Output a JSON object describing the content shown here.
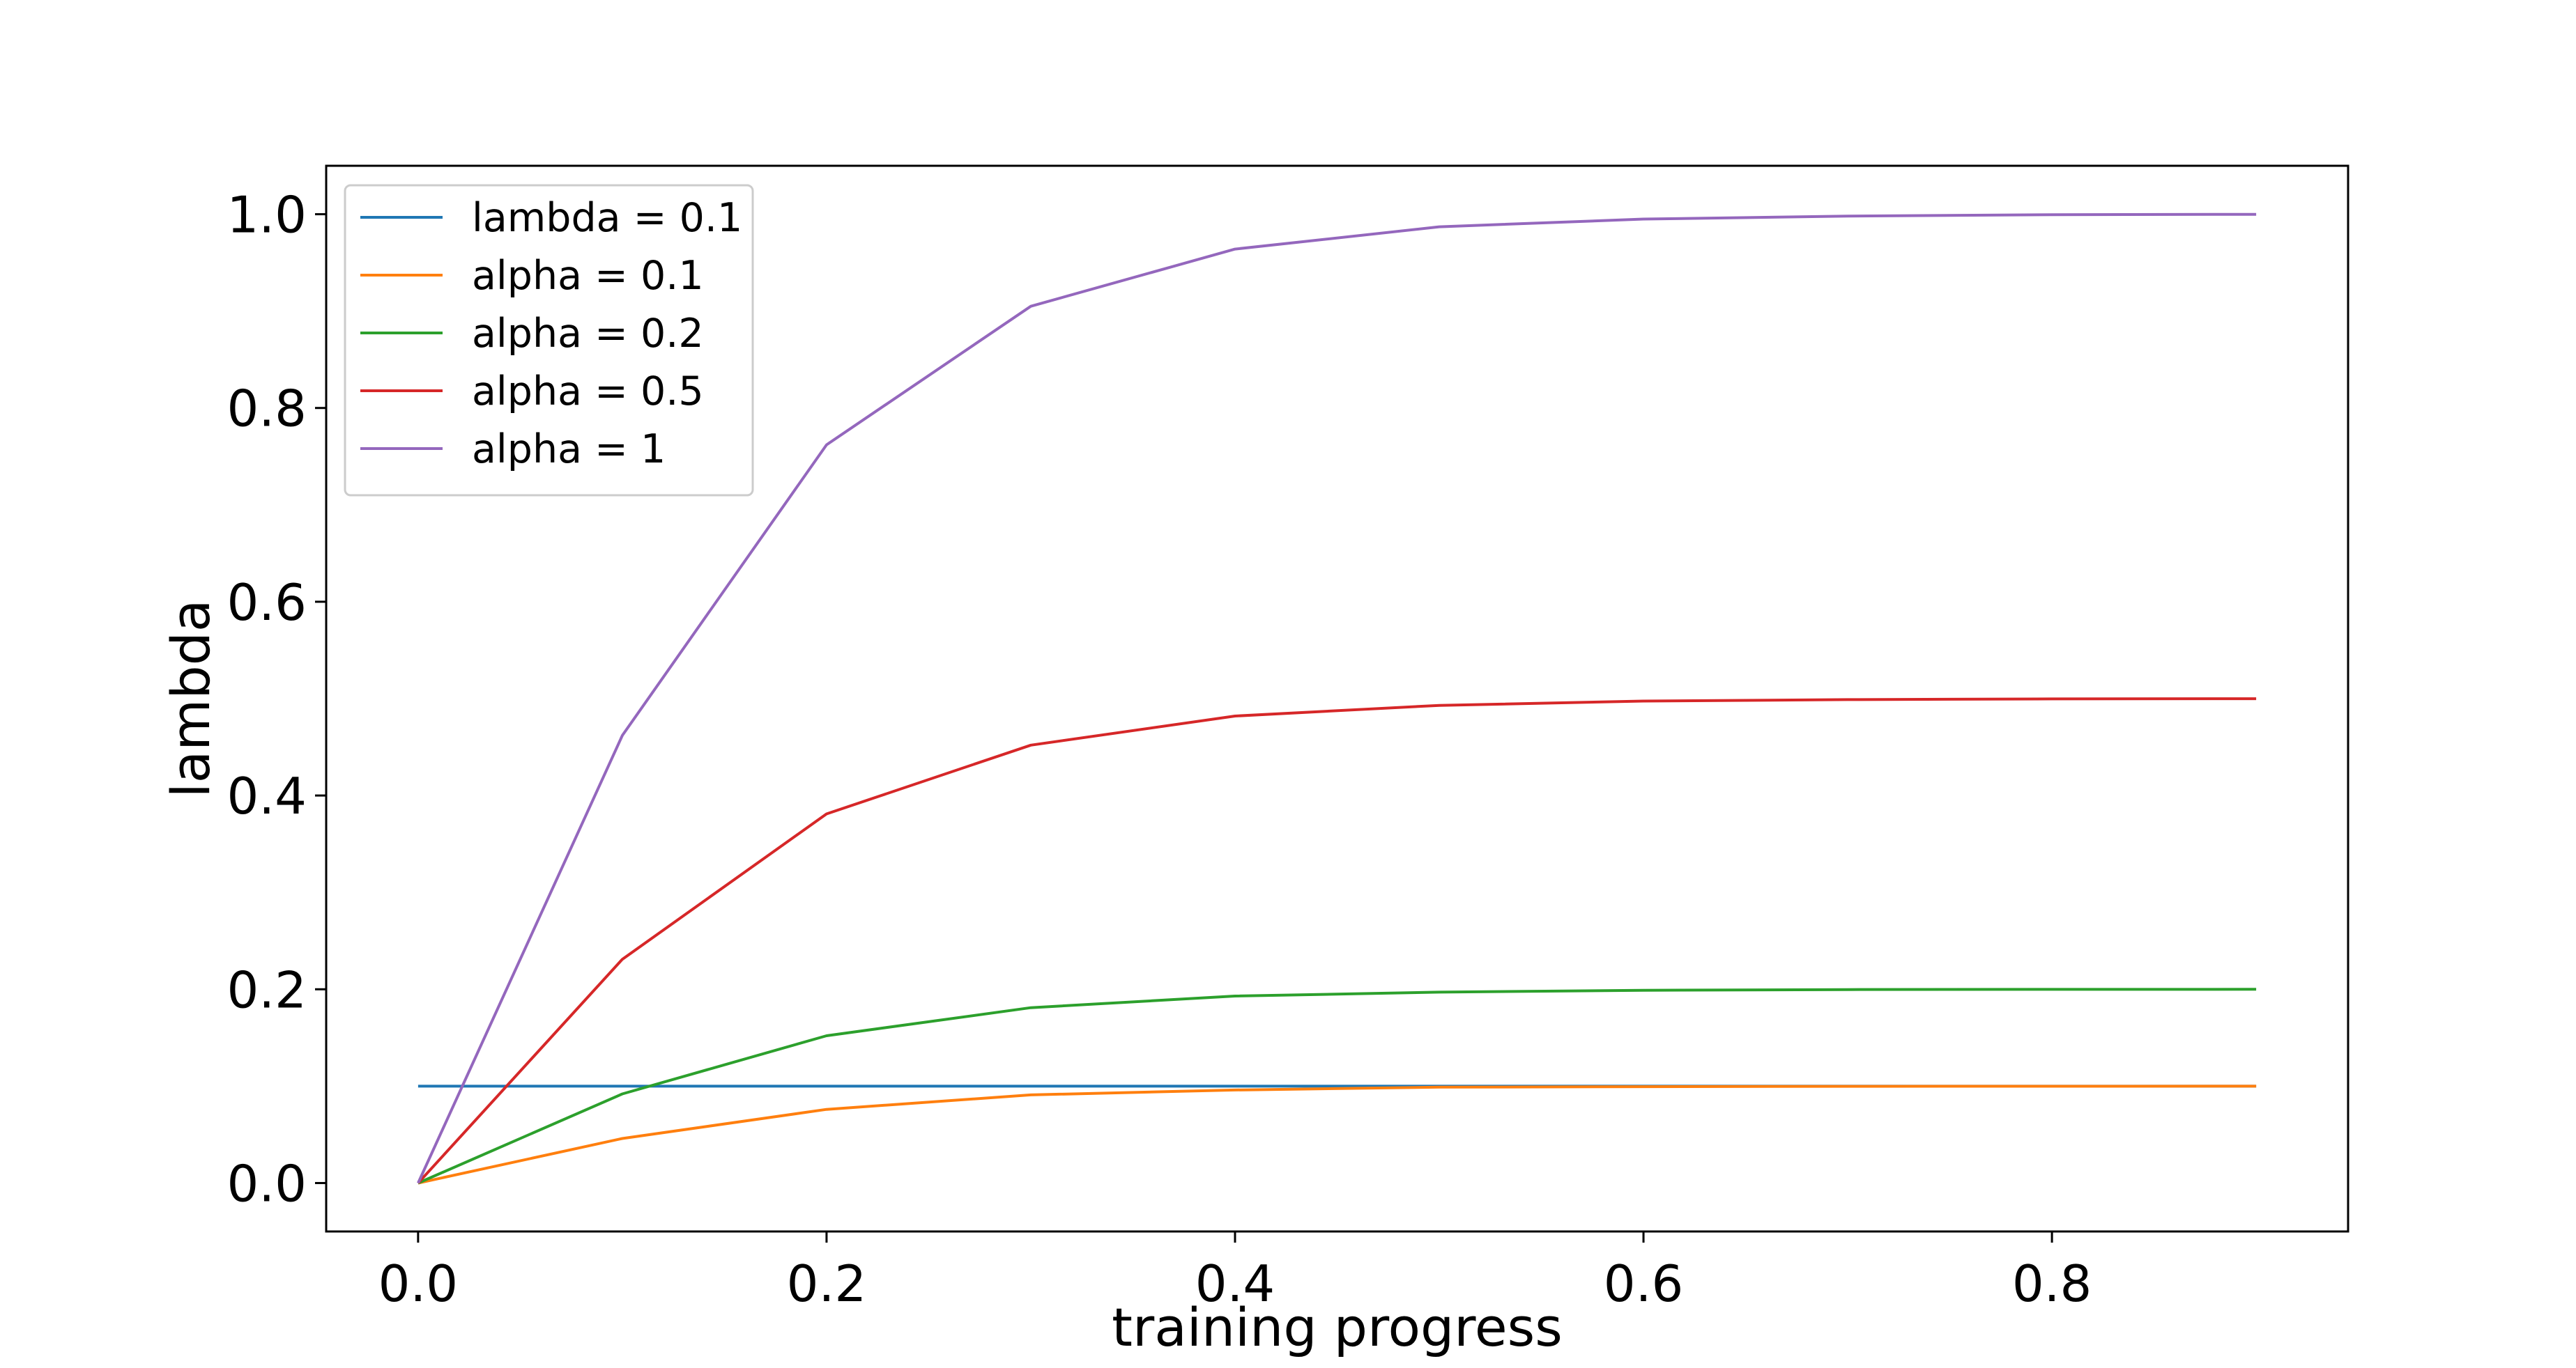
{
  "chart_data": {
    "type": "line",
    "title": "",
    "xlabel": "training progress",
    "ylabel": "lambda",
    "x": [
      0.0,
      0.1,
      0.2,
      0.3,
      0.4,
      0.5,
      0.6,
      0.7,
      0.8,
      0.9
    ],
    "xlim": [
      -0.045,
      0.945
    ],
    "ylim": [
      -0.05,
      1.05
    ],
    "xticks": [
      "0.0",
      "0.2",
      "0.4",
      "0.6",
      "0.8"
    ],
    "yticks": [
      "0.0",
      "0.2",
      "0.4",
      "0.6",
      "0.8",
      "1.0"
    ],
    "grid": false,
    "legend_position": "top-left",
    "series": [
      {
        "name": "lambda = 0.1",
        "color": "#1f77b4",
        "values": [
          0.1,
          0.1,
          0.1,
          0.1,
          0.1,
          0.1,
          0.1,
          0.1,
          0.1,
          0.1
        ]
      },
      {
        "name": "alpha = 0.1",
        "color": "#ff7f0e",
        "values": [
          0.0,
          0.046,
          0.076,
          0.091,
          0.096,
          0.099,
          0.0995,
          0.0998,
          0.0999,
          0.1
        ]
      },
      {
        "name": "alpha = 0.2",
        "color": "#2ca02c",
        "values": [
          0.0,
          0.092,
          0.152,
          0.181,
          0.193,
          0.197,
          0.199,
          0.1997,
          0.1999,
          0.2
        ]
      },
      {
        "name": "alpha = 0.5",
        "color": "#d62728",
        "values": [
          0.0,
          0.231,
          0.381,
          0.452,
          0.482,
          0.493,
          0.4975,
          0.499,
          0.4997,
          0.4999
        ]
      },
      {
        "name": "alpha = 1",
        "color": "#9467bd",
        "values": [
          0.0,
          0.462,
          0.762,
          0.905,
          0.964,
          0.987,
          0.995,
          0.998,
          0.9995,
          0.9999
        ]
      }
    ]
  }
}
